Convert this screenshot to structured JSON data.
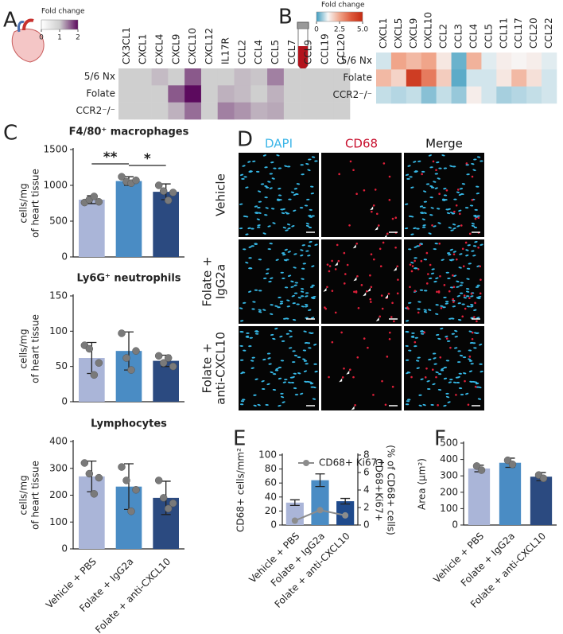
{
  "chart_data": [
    {
      "type": "heatmap",
      "panel": "A",
      "colorbar_title": "Fold change",
      "colorbar_ticks": [
        0,
        1,
        2
      ],
      "colors": [
        "#ffffff",
        "#cfcfcf",
        "#5c0a5e"
      ],
      "columns": [
        "CX3CL1",
        "CXCL1",
        "CXCL4",
        "CXCL9",
        "CXCL10",
        "CXCL12",
        "IL17R",
        "CCL2",
        "CCL4",
        "CCL5",
        "CCL7",
        "CCL9",
        "CCL19",
        "CCL20"
      ],
      "rows": [
        "5/6 Nx",
        "Folate",
        "CCR2⁻/⁻"
      ],
      "values": [
        [
          1.0,
          1.0,
          1.1,
          1.0,
          1.6,
          1.0,
          1.0,
          1.1,
          1.05,
          1.4,
          1.0,
          1.0,
          1.0,
          1.0
        ],
        [
          1.0,
          1.0,
          1.0,
          1.6,
          2.0,
          1.0,
          1.15,
          1.1,
          1.0,
          1.15,
          1.0,
          1.0,
          1.0,
          1.0
        ],
        [
          1.0,
          1.0,
          1.0,
          1.15,
          1.5,
          1.0,
          1.4,
          1.3,
          1.15,
          1.2,
          1.0,
          1.0,
          1.0,
          1.0
        ]
      ]
    },
    {
      "type": "heatmap",
      "panel": "B",
      "colorbar_title": "Fold change",
      "colorbar_ticks": [
        0,
        2.5,
        {
          "value": 5,
          "label": "5.0"
        }
      ],
      "colors": [
        "#3e9cbf",
        "#f7f7f7",
        "#f0a58a",
        "#de5a3c",
        "#c42a12"
      ],
      "columns": [
        "CXCL1",
        "CXCL5",
        "CXCL9",
        "CXCL10",
        "CCL2",
        "CCL3",
        "CCL4",
        "CCL5",
        "CCL11",
        "CCL17",
        "CCL20",
        "CCL22"
      ],
      "rows": [
        "5/6 Nx",
        "Folate",
        "CCR2⁻/⁻"
      ],
      "values": [
        [
          1.0,
          2.5,
          2.2,
          2.5,
          1.5,
          0.3,
          2.3,
          1.1,
          1.4,
          1.3,
          1.4,
          1.1
        ],
        [
          2.2,
          1.8,
          4.5,
          3.2,
          1.9,
          0.2,
          1.0,
          1.0,
          1.5,
          2.2,
          1.6,
          1.0
        ],
        [
          0.9,
          0.8,
          0.9,
          0.5,
          0.9,
          0.6,
          1.4,
          1.0,
          0.7,
          0.8,
          0.9,
          1.0
        ]
      ]
    },
    {
      "type": "bar",
      "panel": "C",
      "title": "F4/80⁺ macrophages",
      "ylabel": [
        "cells/mg",
        "of heart tissue"
      ],
      "values": [
        800,
        1060,
        910
      ],
      "errors": [
        55,
        60,
        110
      ],
      "points": [
        [
          760,
          800,
          845,
          770
        ],
        [
          1120,
          1050,
          1030,
          1070
        ],
        [
          1000,
          920,
          790,
          900
        ]
      ],
      "colors": [
        "#aab5d8",
        "#4a8cc4",
        "#2b4a80"
      ],
      "ylim": [
        0,
        1500
      ],
      "yticks": [
        0,
        500,
        1000,
        1500
      ],
      "significance": [
        "**",
        "*"
      ]
    },
    {
      "type": "bar",
      "title": "Ly6G⁺ neutrophils",
      "ylabel": [
        "cells/mg",
        "of heart tissue"
      ],
      "values": [
        62,
        72,
        58
      ],
      "errors": [
        22,
        27,
        8
      ],
      "points": [
        [
          80,
          75,
          38,
          55
        ],
        [
          97,
          62,
          45,
          72
        ],
        [
          65,
          55,
          62,
          50
        ]
      ],
      "colors": [
        "#aab5d8",
        "#4a8cc4",
        "#2b4a80"
      ],
      "ylim": [
        0,
        150
      ],
      "yticks": [
        0,
        50,
        100,
        150
      ]
    },
    {
      "type": "bar",
      "title": "Lymphocytes",
      "ylabel": [
        "cells/mg",
        "of heart tissue"
      ],
      "categories": [
        "Vehicle + PBS",
        "Folate + IgG2a",
        "Folate + anti-CXCL10"
      ],
      "values": [
        270,
        232,
        190
      ],
      "errors": [
        57,
        85,
        62
      ],
      "points": [
        [
          320,
          280,
          205,
          265
        ],
        [
          305,
          255,
          140,
          220
        ],
        [
          255,
          190,
          150,
          170
        ]
      ],
      "colors": [
        "#aab5d8",
        "#4a8cc4",
        "#2b4a80"
      ],
      "ylim": [
        0,
        400
      ],
      "yticks": [
        0,
        100,
        200,
        300,
        400
      ]
    },
    {
      "type": "bar",
      "panel": "E",
      "ylabel": [
        "CD68+ cells/mm²"
      ],
      "categories": [
        "Vehicle + PBS",
        "Folate + IgG2a",
        "Folate + anti-CXCL10"
      ],
      "values": [
        32,
        64,
        34
      ],
      "errors": [
        4,
        9,
        4
      ],
      "colors": [
        "#aab5d8",
        "#4a8cc4",
        "#1f4a8c"
      ],
      "ylim": [
        0,
        100
      ],
      "yticks": [
        0,
        20,
        40,
        60,
        80,
        100
      ],
      "y2label": [
        "CD68+Ki67+",
        "(% of CD68+ cells)"
      ],
      "y2lim": [
        0,
        8
      ],
      "y2ticks": [
        0,
        2,
        4,
        6,
        8
      ],
      "series": [
        {
          "name": "CD68+ Ki67+",
          "color": "#8c8c8c",
          "values": [
            0.5,
            1.7,
            1.1
          ],
          "axis": "y2"
        }
      ]
    },
    {
      "type": "bar",
      "panel": "F",
      "ylabel": [
        "Area (μm²)"
      ],
      "categories": [
        "Vehicle + PBS",
        "Folate + IgG2a",
        "Folate + anti-CXCL10"
      ],
      "values": [
        345,
        380,
        295
      ],
      "errors": [
        20,
        28,
        25
      ],
      "points": [
        [
          360,
          335
        ],
        [
          395,
          370
        ],
        [
          305,
          285
        ]
      ],
      "colors": [
        "#aab5d8",
        "#4a8cc4",
        "#2b4a80"
      ],
      "ylim": [
        0,
        500
      ],
      "yticks": [
        0,
        100,
        200,
        300,
        400,
        500
      ]
    }
  ],
  "micrograph": {
    "panel": "D",
    "columns": [
      "DAPI",
      "CD68",
      "Merge"
    ],
    "column_colors": [
      "#3cb6e8",
      "#c8102e",
      "#111111"
    ],
    "rows": [
      [
        "Vehicle"
      ],
      [
        "Folate +",
        "IgG2a"
      ],
      [
        "Folate +",
        "anti-CXCL10"
      ]
    ]
  }
}
